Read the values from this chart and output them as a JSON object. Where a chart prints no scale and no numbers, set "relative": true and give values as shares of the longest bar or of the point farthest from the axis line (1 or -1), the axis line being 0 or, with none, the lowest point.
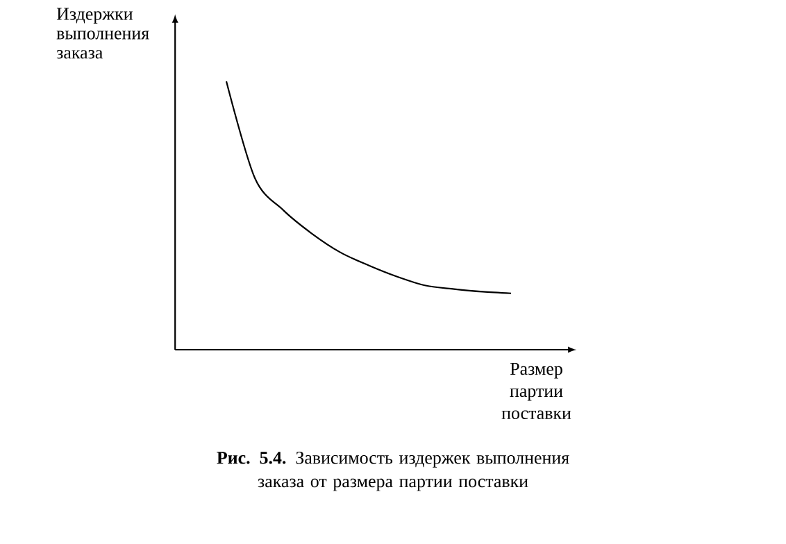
{
  "chart_data": {
    "type": "line",
    "relative": true,
    "xlabel": "Размер партии поставки",
    "ylabel": "Издержки выполнения заказа",
    "annotations": [
      "**Рис. 5.4.** Зависимость издержек выполнения заказа от размера партии поставки"
    ],
    "categories": [
      null,
      null,
      null,
      null,
      null,
      null,
      null,
      null,
      null,
      null,
      null
    ],
    "values": [
      1.0,
      0.64,
      0.52,
      0.433,
      0.363,
      0.314,
      0.272,
      0.239,
      0.226,
      0.216,
      0.21
    ],
    "color": "#000000"
  }
}
